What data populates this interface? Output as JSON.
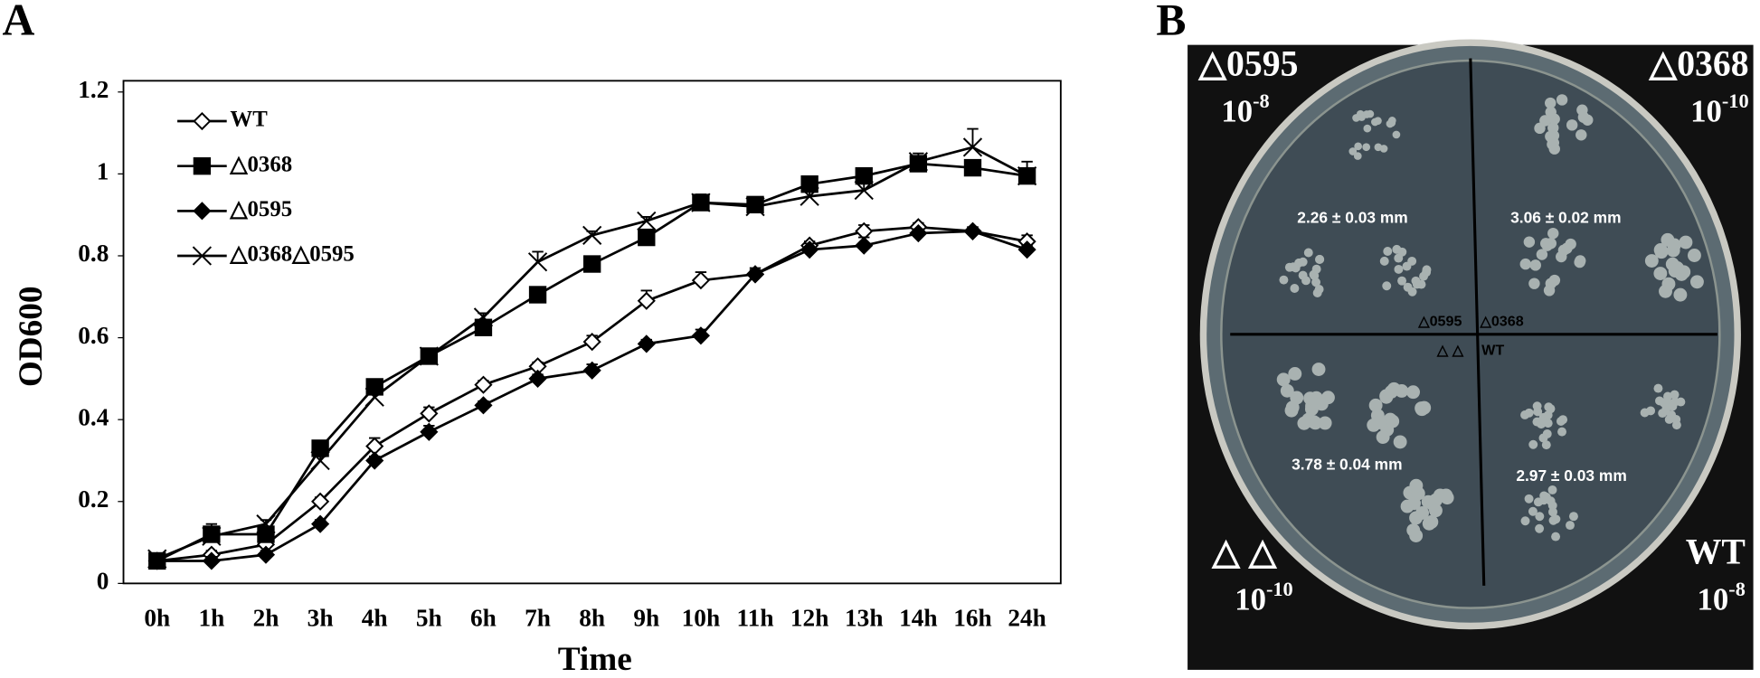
{
  "chart_data": {
    "type": "line",
    "panel_label": "A",
    "xlabel": "Time",
    "ylabel": "OD600",
    "categories": [
      "0h",
      "1h",
      "2h",
      "3h",
      "4h",
      "5h",
      "6h",
      "7h",
      "8h",
      "9h",
      "10h",
      "11h",
      "12h",
      "13h",
      "14h",
      "16h",
      "24h"
    ],
    "ylim": [
      0,
      1.2
    ],
    "yticks": [
      0,
      0.2,
      0.4,
      0.6,
      0.8,
      1,
      1.2
    ],
    "grid": false,
    "legend": "upper left",
    "series": [
      {
        "name": "WT",
        "color": "#000000",
        "marker": "diamond-open",
        "values": [
          0.055,
          0.07,
          0.095,
          0.2,
          0.335,
          0.415,
          0.485,
          0.53,
          0.59,
          0.69,
          0.74,
          0.755,
          0.825,
          0.86,
          0.87,
          0.86,
          0.835
        ],
        "errors": [
          0.01,
          0.01,
          0.01,
          0.01,
          0.02,
          0.015,
          0.01,
          0.01,
          0.015,
          0.025,
          0.02,
          0.01,
          0.01,
          0.015,
          0.01,
          0.01,
          0.015
        ]
      },
      {
        "name": "△0368",
        "color": "#000000",
        "marker": "square",
        "values": [
          0.055,
          0.12,
          0.12,
          0.33,
          0.48,
          0.555,
          0.625,
          0.705,
          0.78,
          0.845,
          0.93,
          0.925,
          0.975,
          0.995,
          1.025,
          1.015,
          0.995
        ],
        "errors": [
          0.01,
          0.01,
          0.01,
          0.01,
          0.01,
          0.01,
          0.01,
          0.01,
          0.01,
          0.01,
          0.01,
          0.01,
          0.01,
          0.01,
          0.01,
          0.01,
          0.01
        ]
      },
      {
        "name": "△0595",
        "color": "#000000",
        "marker": "diamond",
        "values": [
          0.055,
          0.055,
          0.07,
          0.145,
          0.3,
          0.37,
          0.435,
          0.5,
          0.52,
          0.585,
          0.605,
          0.755,
          0.815,
          0.825,
          0.855,
          0.86,
          0.815
        ],
        "errors": [
          0.01,
          0.01,
          0.01,
          0.01,
          0.01,
          0.015,
          0.01,
          0.01,
          0.015,
          0.01,
          0.015,
          0.015,
          0.015,
          0.02,
          0.01,
          0.01,
          0.01
        ]
      },
      {
        "name": "△0368△0595",
        "color": "#000000",
        "marker": "x",
        "values": [
          0.06,
          0.115,
          0.145,
          0.3,
          0.455,
          0.555,
          0.65,
          0.785,
          0.85,
          0.885,
          0.93,
          0.92,
          0.945,
          0.96,
          1.03,
          1.065,
          0.995
        ],
        "errors": [
          0.01,
          0.03,
          0.01,
          0.01,
          0.01,
          0.01,
          0.01,
          0.025,
          0.01,
          0.01,
          0.02,
          0.01,
          0.015,
          0.02,
          0.02,
          0.045,
          0.035
        ]
      }
    ]
  },
  "panel_b": {
    "panel_label": "B",
    "corners": [
      {
        "strain": "△0595",
        "base": "10",
        "exponent": "-8"
      },
      {
        "strain": "△0368",
        "base": "10",
        "exponent": "-10"
      },
      {
        "strain": "△ △",
        "base": "10",
        "exponent": "-10"
      },
      {
        "strain": "WT",
        "base": "10",
        "exponent": "-8"
      }
    ],
    "colony_sizes": [
      "2.26 ± 0.03 mm",
      "3.06 ± 0.02 mm",
      "3.78 ± 0.04 mm",
      "2.97 ± 0.03 mm"
    ],
    "center_labels": [
      "△0595",
      "△0368",
      "△ △",
      "WT"
    ]
  }
}
